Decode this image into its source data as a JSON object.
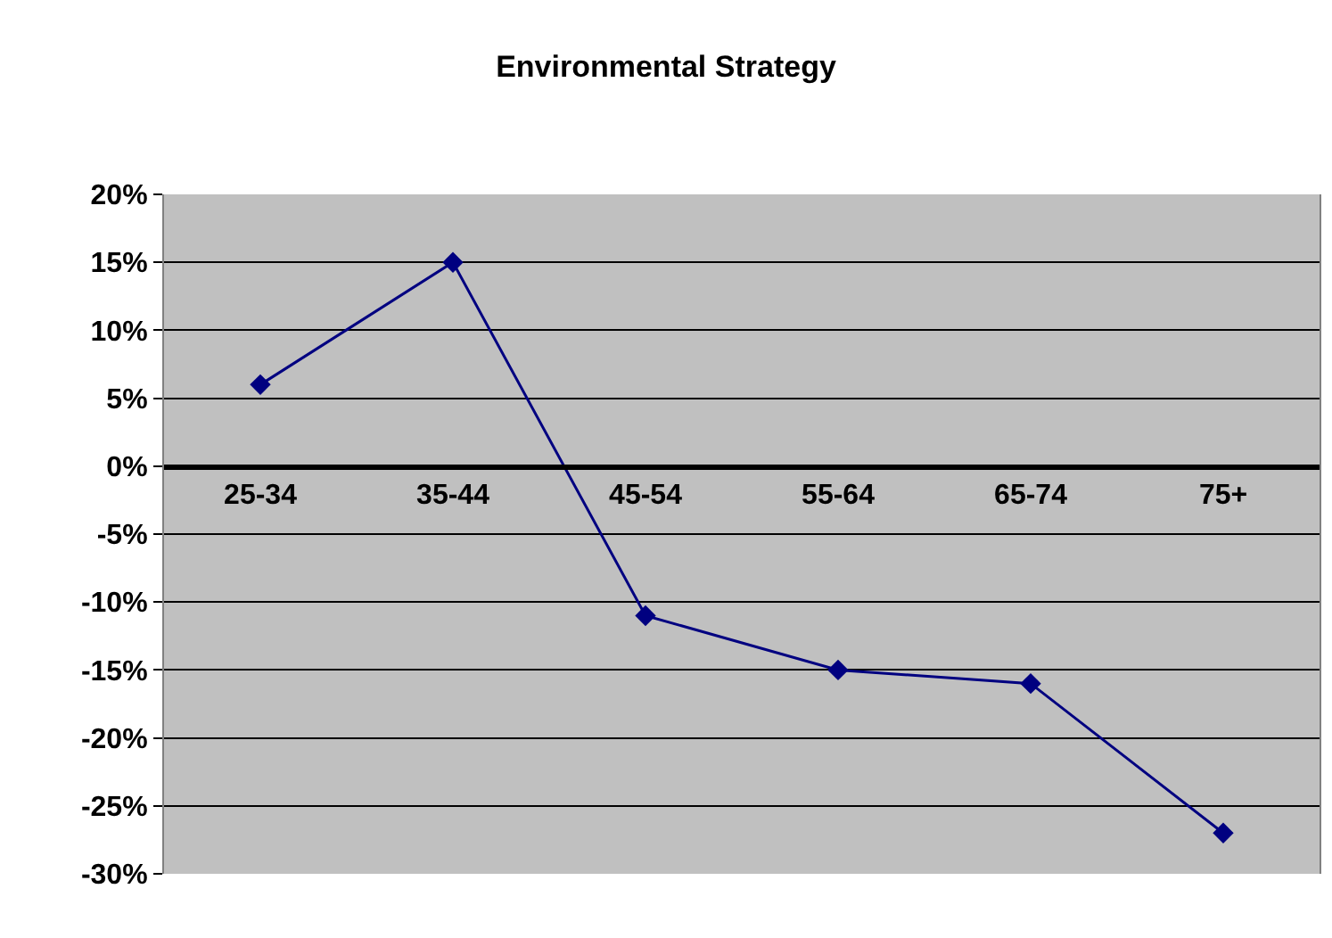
{
  "chart_data": {
    "type": "line",
    "title": "Environmental Strategy",
    "categories": [
      "25-34",
      "35-44",
      "45-54",
      "55-64",
      "65-74",
      "75+"
    ],
    "series": [
      {
        "color": "#000080",
        "values": [
          6,
          15,
          -11,
          -15,
          -16,
          -27
        ]
      }
    ],
    "ylim": [
      -30,
      20
    ],
    "yticks": [
      {
        "value": 20,
        "label": "20%"
      },
      {
        "value": 15,
        "label": "15%"
      },
      {
        "value": 10,
        "label": "10%"
      },
      {
        "value": 5,
        "label": "5%"
      },
      {
        "value": 0,
        "label": "0%"
      },
      {
        "value": -5,
        "label": "-5%"
      },
      {
        "value": -10,
        "label": "-10%"
      },
      {
        "value": -15,
        "label": "-15%"
      },
      {
        "value": -20,
        "label": "-20%"
      },
      {
        "value": -25,
        "label": "-25%"
      },
      {
        "value": -30,
        "label": "-30%"
      }
    ],
    "grid": "y",
    "marker": "diamond",
    "line_style": "solid"
  }
}
